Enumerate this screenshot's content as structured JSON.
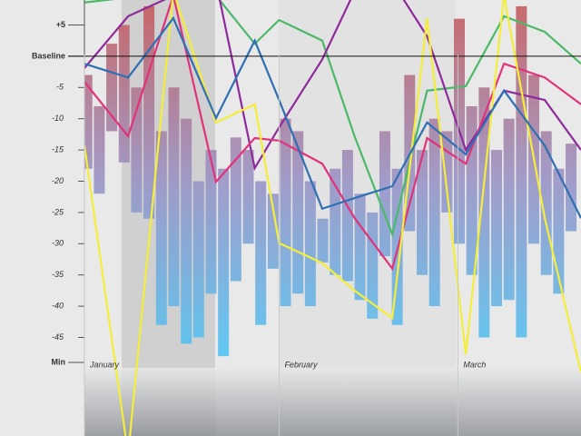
{
  "chart_data": {
    "type": "range-bar-line",
    "ylim": [
      -49,
      9
    ],
    "yticks": [
      {
        "value": 5,
        "label": "+5"
      },
      {
        "value": 0,
        "label": "Baseline"
      },
      -5,
      -10,
      -15,
      -20,
      -25,
      -30,
      -35,
      -40,
      -45,
      {
        "value": -49,
        "label": "Min"
      }
    ],
    "xlim": [
      0,
      100
    ],
    "months": [
      {
        "label": "January",
        "x": 1.1
      },
      {
        "label": "February",
        "x": 40.3
      },
      {
        "label": "March",
        "x": 76.3
      }
    ],
    "bar_gradient": [
      "#c65a5a",
      "#9a94c6",
      "#4fc6f5"
    ],
    "bars": {
      "x": [
        0.5,
        3,
        5.5,
        8,
        10.5,
        13,
        15.5,
        18,
        20.5,
        23,
        25.5,
        28,
        30.5,
        33,
        35.5,
        38,
        40.5,
        43,
        45.5,
        48,
        50.5,
        53,
        55.5,
        58,
        60.5,
        63,
        65.5,
        68,
        70.5,
        73,
        75.5,
        78,
        80.5,
        83,
        85.5,
        88,
        90.5,
        93,
        95.5,
        98
      ],
      "high": [
        -3,
        -8,
        2,
        5,
        -5,
        8,
        -12,
        -5,
        -10,
        -20,
        -15,
        -18,
        -13,
        -15,
        -20,
        -22,
        -10,
        -12,
        -20,
        -26,
        -18,
        -15,
        -22,
        -25,
        -12,
        -18,
        -3,
        -15,
        -10,
        -12,
        6,
        -8,
        -5,
        -15,
        -10,
        8,
        -3,
        -12,
        -18,
        -14
      ],
      "low": [
        -18,
        -22,
        -12,
        -17,
        -25,
        -26,
        -43,
        -40,
        -46,
        -45,
        -38,
        -48,
        -36,
        -30,
        -43,
        -34,
        -40,
        -38,
        -40,
        -33,
        -35,
        -36,
        -39,
        -42,
        -32,
        -43,
        -28,
        -35,
        -40,
        -25,
        -30,
        -35,
        -45,
        -40,
        -39,
        -45,
        -30,
        -35,
        -38,
        -28
      ]
    },
    "x": [
      0,
      8.8,
      17.9,
      26.5,
      34.3,
      39.2,
      47.9,
      54.4,
      62,
      69,
      76.8,
      84.5,
      92.7,
      100
    ],
    "series": [
      {
        "color": "#4cb86a",
        "values": [
          8.6,
          9.4,
          10.4,
          9.7,
          2.0,
          5.8,
          2.5,
          -12.8,
          -28.5,
          -5.5,
          -4.8,
          6.4,
          3.9,
          -1.2
        ]
      },
      {
        "color": "#8e2a9a",
        "values": [
          -1.9,
          6.4,
          9.7,
          11.9,
          -17.9,
          -11.4,
          -0.5,
          10.4,
          11.9,
          3.2,
          -15.0,
          -5.5,
          -7.0,
          -15.0
        ]
      },
      {
        "color": "#e0337a",
        "values": [
          -4.1,
          -12.8,
          9.7,
          -20.1,
          -13.1,
          -13.5,
          -17.2,
          -25.9,
          -34.0,
          -13.1,
          -17.2,
          -1.2,
          -3.4,
          -7.7
        ]
      },
      {
        "color": "#f4ee3a",
        "values": [
          -14.3,
          -63.7,
          10.4,
          -10.6,
          -7.7,
          -29.9,
          -33.1,
          -37.5,
          -41.9,
          6.1,
          -47.7,
          9.7,
          -25.9,
          -50.6
        ]
      },
      {
        "color": "#2f6fb4",
        "values": [
          -1.2,
          -3.4,
          6.1,
          -9.9,
          2.5,
          -7.0,
          -24.4,
          -22.7,
          -20.8,
          -10.6,
          -15.7,
          -5.5,
          -14.3,
          -25.9
        ]
      }
    ]
  }
}
